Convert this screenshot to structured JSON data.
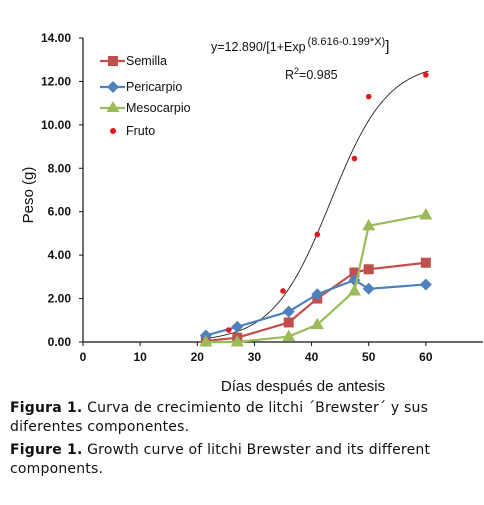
{
  "chart_data": {
    "type": "line",
    "xlabel": "Días después de antesis",
    "ylabel": "Peso  (g)",
    "xlim": [
      0,
      70
    ],
    "ylim": [
      0,
      14
    ],
    "x_ticks": [
      "0",
      "10",
      "20",
      "30",
      "40",
      "50",
      "60"
    ],
    "y_ticks": [
      "0.00",
      "2.00",
      "4.00",
      "6.00",
      "8.00",
      "10.00",
      "12.00",
      "14.00"
    ],
    "legend_position": "top-left",
    "series": [
      {
        "name": "Semilla",
        "color": "#c0504d",
        "marker": "square",
        "points": [
          [
            21.5,
            0.05
          ],
          [
            27,
            0.2
          ],
          [
            36,
            0.9
          ],
          [
            41,
            2.0
          ],
          [
            47.5,
            3.2
          ],
          [
            50,
            3.35
          ],
          [
            60,
            3.65
          ]
        ]
      },
      {
        "name": "Pericarpio",
        "color": "#4f81bd",
        "marker": "diamond",
        "points": [
          [
            21.5,
            0.3
          ],
          [
            27,
            0.7
          ],
          [
            36,
            1.4
          ],
          [
            41,
            2.2
          ],
          [
            47.5,
            2.85
          ],
          [
            50,
            2.45
          ],
          [
            60,
            2.65
          ]
        ]
      },
      {
        "name": "Mesocarpio",
        "color": "#9bbb59",
        "marker": "triangle",
        "points": [
          [
            21.5,
            0.0
          ],
          [
            27,
            0.0
          ],
          [
            36,
            0.25
          ],
          [
            41,
            0.8
          ],
          [
            47.5,
            2.35
          ],
          [
            50,
            5.35
          ],
          [
            60,
            5.85
          ]
        ]
      },
      {
        "name": "Fruto",
        "color": "#e31a1c",
        "marker": "dot",
        "points": [
          [
            25.5,
            0.55
          ],
          [
            35,
            2.35
          ],
          [
            41,
            4.95
          ],
          [
            47.5,
            8.45
          ],
          [
            50,
            11.3
          ],
          [
            60,
            12.3
          ]
        ]
      }
    ],
    "fit": {
      "equation_prefix": "y=12.890/[1+Exp",
      "equation_exponent": "(8.616-0.199*X)",
      "equation_suffix": "]",
      "r2_prefix": "R",
      "r2_sup": "2",
      "r2_value": "=0.985",
      "a": 12.89,
      "b": 8.616,
      "c": 0.199,
      "x_range": [
        21,
        60.5
      ],
      "color": "#222222"
    }
  },
  "captions": {
    "es_lead": "Figura 1.",
    "es_text": " Curva de crecimiento de litchi ´Brewster´ y sus diferentes componentes.",
    "en_lead": "Figure 1.",
    "en_text": " Growth curve of litchi Brewster and its different components."
  }
}
